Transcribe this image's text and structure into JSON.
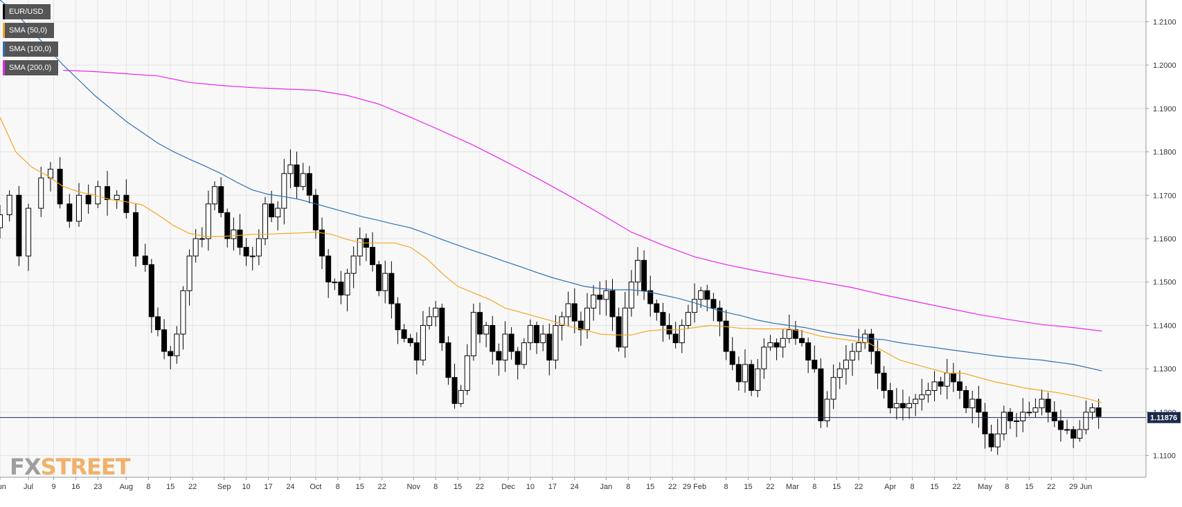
{
  "chart_data": {
    "type": "candlestick",
    "symbol": "EUR/USD",
    "legend": [
      {
        "label": "EUR/USD",
        "color": "#000000"
      },
      {
        "label": "SMA (50,0)",
        "color": "#f5a623"
      },
      {
        "label": "SMA (100,0)",
        "color": "#2f6fb5"
      },
      {
        "label": "SMA (200,0)",
        "color": "#ee22ee"
      }
    ],
    "ylim": [
      1.105,
      1.215
    ],
    "y_ticks": [
      "1.1100",
      "1.1200",
      "1.1300",
      "1.1400",
      "1.1500",
      "1.1600",
      "1.1700",
      "1.1800",
      "1.1900",
      "1.2000",
      "1.2100"
    ],
    "x_range_days": [
      0,
      363
    ],
    "x_ticks": [
      {
        "day": 0,
        "label": "Jun"
      },
      {
        "day": 9,
        "label": "Jul"
      },
      {
        "day": 17,
        "label": "9"
      },
      {
        "day": 24,
        "label": "16"
      },
      {
        "day": 31,
        "label": "23"
      },
      {
        "day": 40,
        "label": "Aug"
      },
      {
        "day": 47,
        "label": "8"
      },
      {
        "day": 54,
        "label": "15"
      },
      {
        "day": 61,
        "label": "22"
      },
      {
        "day": 71,
        "label": "Sep"
      },
      {
        "day": 78,
        "label": "10"
      },
      {
        "day": 85,
        "label": "17"
      },
      {
        "day": 92,
        "label": "24"
      },
      {
        "day": 100,
        "label": "Oct"
      },
      {
        "day": 107,
        "label": "8"
      },
      {
        "day": 114,
        "label": "15"
      },
      {
        "day": 121,
        "label": "22"
      },
      {
        "day": 131,
        "label": "Nov"
      },
      {
        "day": 138,
        "label": "8"
      },
      {
        "day": 145,
        "label": "15"
      },
      {
        "day": 152,
        "label": "22"
      },
      {
        "day": 161,
        "label": "Dec"
      },
      {
        "day": 168,
        "label": "10"
      },
      {
        "day": 175,
        "label": "17"
      },
      {
        "day": 182,
        "label": "24"
      },
      {
        "day": 192,
        "label": "Jan"
      },
      {
        "day": 199,
        "label": "8"
      },
      {
        "day": 206,
        "label": "15"
      },
      {
        "day": 213,
        "label": "22"
      },
      {
        "day": 220,
        "label": "29 Feb"
      },
      {
        "day": 230,
        "label": "8"
      },
      {
        "day": 237,
        "label": "15"
      },
      {
        "day": 244,
        "label": "22"
      },
      {
        "day": 251,
        "label": "Mar"
      },
      {
        "day": 258,
        "label": "8"
      },
      {
        "day": 265,
        "label": "15"
      },
      {
        "day": 272,
        "label": "22"
      },
      {
        "day": 282,
        "label": "Apr"
      },
      {
        "day": 289,
        "label": "8"
      },
      {
        "day": 296,
        "label": "15"
      },
      {
        "day": 303,
        "label": "22"
      },
      {
        "day": 312,
        "label": "May"
      },
      {
        "day": 319,
        "label": "8"
      },
      {
        "day": 326,
        "label": "15"
      },
      {
        "day": 333,
        "label": "22"
      },
      {
        "day": 340,
        "label": "29"
      },
      {
        "day": 344,
        "label": "Jun"
      }
    ],
    "closes": [
      [
        0,
        1.1655
      ],
      [
        3,
        1.17
      ],
      [
        6,
        1.156
      ],
      [
        9,
        1.167
      ],
      [
        13,
        1.174
      ],
      [
        16,
        1.176
      ],
      [
        19,
        1.168
      ],
      [
        22,
        1.164
      ],
      [
        25,
        1.17
      ],
      [
        28,
        1.168
      ],
      [
        31,
        1.172
      ],
      [
        34,
        1.169
      ],
      [
        37,
        1.17
      ],
      [
        40,
        1.166
      ],
      [
        43,
        1.156
      ],
      [
        46,
        1.154
      ],
      [
        48,
        1.142
      ],
      [
        50,
        1.139
      ],
      [
        52,
        1.134
      ],
      [
        54,
        1.133
      ],
      [
        56,
        1.138
      ],
      [
        58,
        1.148
      ],
      [
        60,
        1.156
      ],
      [
        62,
        1.16
      ],
      [
        64,
        1.16
      ],
      [
        66,
        1.168
      ],
      [
        68,
        1.172
      ],
      [
        70,
        1.166
      ],
      [
        72,
        1.16
      ],
      [
        74,
        1.162
      ],
      [
        76,
        1.158
      ],
      [
        78,
        1.156
      ],
      [
        80,
        1.156
      ],
      [
        82,
        1.16
      ],
      [
        84,
        1.168
      ],
      [
        86,
        1.165
      ],
      [
        88,
        1.167
      ],
      [
        90,
        1.175
      ],
      [
        92,
        1.177
      ],
      [
        94,
        1.172
      ],
      [
        96,
        1.175
      ],
      [
        98,
        1.17
      ],
      [
        100,
        1.162
      ],
      [
        102,
        1.156
      ],
      [
        104,
        1.15
      ],
      [
        106,
        1.15
      ],
      [
        108,
        1.147
      ],
      [
        110,
        1.152
      ],
      [
        112,
        1.156
      ],
      [
        114,
        1.16
      ],
      [
        116,
        1.158
      ],
      [
        118,
        1.154
      ],
      [
        120,
        1.148
      ],
      [
        122,
        1.152
      ],
      [
        124,
        1.145
      ],
      [
        126,
        1.139
      ],
      [
        128,
        1.137
      ],
      [
        130,
        1.136
      ],
      [
        132,
        1.132
      ],
      [
        134,
        1.14
      ],
      [
        136,
        1.142
      ],
      [
        138,
        1.144
      ],
      [
        140,
        1.136
      ],
      [
        142,
        1.128
      ],
      [
        144,
        1.122
      ],
      [
        146,
        1.125
      ],
      [
        148,
        1.133
      ],
      [
        150,
        1.143
      ],
      [
        152,
        1.138
      ],
      [
        154,
        1.14
      ],
      [
        156,
        1.134
      ],
      [
        158,
        1.132
      ],
      [
        160,
        1.138
      ],
      [
        162,
        1.134
      ],
      [
        164,
        1.131
      ],
      [
        166,
        1.136
      ],
      [
        168,
        1.14
      ],
      [
        170,
        1.136
      ],
      [
        172,
        1.138
      ],
      [
        174,
        1.132
      ],
      [
        176,
        1.14
      ],
      [
        178,
        1.142
      ],
      [
        180,
        1.145
      ],
      [
        182,
        1.141
      ],
      [
        184,
        1.139
      ],
      [
        186,
        1.144
      ],
      [
        188,
        1.147
      ],
      [
        190,
        1.146
      ],
      [
        192,
        1.148
      ],
      [
        194,
        1.142
      ],
      [
        196,
        1.135
      ],
      [
        198,
        1.144
      ],
      [
        200,
        1.15
      ],
      [
        202,
        1.155
      ],
      [
        204,
        1.148
      ],
      [
        206,
        1.145
      ],
      [
        208,
        1.143
      ],
      [
        210,
        1.14
      ],
      [
        212,
        1.138
      ],
      [
        214,
        1.136
      ],
      [
        216,
        1.14
      ],
      [
        218,
        1.143
      ],
      [
        220,
        1.146
      ],
      [
        222,
        1.148
      ],
      [
        224,
        1.146
      ],
      [
        226,
        1.144
      ],
      [
        228,
        1.141
      ],
      [
        230,
        1.134
      ],
      [
        232,
        1.131
      ],
      [
        234,
        1.127
      ],
      [
        236,
        1.131
      ],
      [
        238,
        1.125
      ],
      [
        240,
        1.13
      ],
      [
        242,
        1.135
      ],
      [
        244,
        1.136
      ],
      [
        246,
        1.135
      ],
      [
        248,
        1.137
      ],
      [
        250,
        1.139
      ],
      [
        252,
        1.137
      ],
      [
        254,
        1.136
      ],
      [
        256,
        1.132
      ],
      [
        258,
        1.13
      ],
      [
        260,
        1.118
      ],
      [
        262,
        1.123
      ],
      [
        264,
        1.128
      ],
      [
        266,
        1.13
      ],
      [
        268,
        1.132
      ],
      [
        270,
        1.134
      ],
      [
        272,
        1.136
      ],
      [
        274,
        1.138
      ],
      [
        276,
        1.134
      ],
      [
        278,
        1.129
      ],
      [
        280,
        1.125
      ],
      [
        282,
        1.121
      ],
      [
        284,
        1.122
      ],
      [
        286,
        1.121
      ],
      [
        288,
        1.122
      ],
      [
        290,
        1.123
      ],
      [
        292,
        1.124
      ],
      [
        294,
        1.125
      ],
      [
        296,
        1.127
      ],
      [
        298,
        1.126
      ],
      [
        300,
        1.129
      ],
      [
        302,
        1.127
      ],
      [
        304,
        1.125
      ],
      [
        306,
        1.121
      ],
      [
        308,
        1.123
      ],
      [
        310,
        1.12
      ],
      [
        312,
        1.115
      ],
      [
        314,
        1.112
      ],
      [
        316,
        1.115
      ],
      [
        318,
        1.12
      ],
      [
        320,
        1.118
      ],
      [
        322,
        1.118
      ],
      [
        324,
        1.12
      ],
      [
        326,
        1.12
      ],
      [
        328,
        1.121
      ],
      [
        330,
        1.123
      ],
      [
        332,
        1.12
      ],
      [
        334,
        1.118
      ],
      [
        336,
        1.116
      ],
      [
        338,
        1.116
      ],
      [
        340,
        1.114
      ],
      [
        342,
        1.116
      ],
      [
        344,
        1.12
      ],
      [
        346,
        1.121
      ],
      [
        348,
        1.119
      ]
    ],
    "sma_50": [
      [
        0,
        1.188
      ],
      [
        5,
        1.18
      ],
      [
        10,
        1.1765
      ],
      [
        15,
        1.1745
      ],
      [
        20,
        1.172
      ],
      [
        25,
        1.1708
      ],
      [
        30,
        1.17
      ],
      [
        35,
        1.169
      ],
      [
        40,
        1.1685
      ],
      [
        45,
        1.1678
      ],
      [
        50,
        1.1655
      ],
      [
        55,
        1.163
      ],
      [
        60,
        1.1612
      ],
      [
        65,
        1.1605
      ],
      [
        70,
        1.1605
      ],
      [
        75,
        1.1607
      ],
      [
        80,
        1.161
      ],
      [
        85,
        1.161
      ],
      [
        90,
        1.1612
      ],
      [
        95,
        1.1613
      ],
      [
        100,
        1.1615
      ],
      [
        105,
        1.161
      ],
      [
        110,
        1.1598
      ],
      [
        115,
        1.159
      ],
      [
        120,
        1.159
      ],
      [
        125,
        1.159
      ],
      [
        130,
        1.158
      ],
      [
        135,
        1.1555
      ],
      [
        140,
        1.152
      ],
      [
        145,
        1.149
      ],
      [
        150,
        1.1475
      ],
      [
        155,
        1.146
      ],
      [
        160,
        1.144
      ],
      [
        165,
        1.143
      ],
      [
        170,
        1.142
      ],
      [
        175,
        1.141
      ],
      [
        180,
        1.1398
      ],
      [
        185,
        1.139
      ],
      [
        190,
        1.138
      ],
      [
        195,
        1.1378
      ],
      [
        200,
        1.1378
      ],
      [
        205,
        1.1387
      ],
      [
        210,
        1.139
      ],
      [
        215,
        1.139
      ],
      [
        220,
        1.1395
      ],
      [
        225,
        1.14
      ],
      [
        230,
        1.1397
      ],
      [
        235,
        1.1393
      ],
      [
        240,
        1.1392
      ],
      [
        245,
        1.1392
      ],
      [
        250,
        1.1392
      ],
      [
        255,
        1.1385
      ],
      [
        260,
        1.1375
      ],
      [
        265,
        1.137
      ],
      [
        270,
        1.1365
      ],
      [
        275,
        1.136
      ],
      [
        280,
        1.134
      ],
      [
        285,
        1.132
      ],
      [
        290,
        1.131
      ],
      [
        295,
        1.13
      ],
      [
        300,
        1.129
      ],
      [
        305,
        1.129
      ],
      [
        310,
        1.128
      ],
      [
        315,
        1.127
      ],
      [
        320,
        1.1263
      ],
      [
        325,
        1.1255
      ],
      [
        330,
        1.125
      ],
      [
        335,
        1.1245
      ],
      [
        340,
        1.1238
      ],
      [
        345,
        1.123
      ],
      [
        349,
        1.1222
      ]
    ],
    "sma_100": [
      [
        0,
        1.215
      ],
      [
        5,
        1.212
      ],
      [
        10,
        1.208
      ],
      [
        15,
        1.204
      ],
      [
        20,
        1.2
      ],
      [
        25,
        1.1965
      ],
      [
        30,
        1.193
      ],
      [
        35,
        1.19
      ],
      [
        40,
        1.187
      ],
      [
        45,
        1.1845
      ],
      [
        50,
        1.182
      ],
      [
        55,
        1.18
      ],
      [
        60,
        1.1783
      ],
      [
        65,
        1.1767
      ],
      [
        70,
        1.175
      ],
      [
        75,
        1.173
      ],
      [
        80,
        1.1712
      ],
      [
        85,
        1.1702
      ],
      [
        90,
        1.1697
      ],
      [
        95,
        1.169
      ],
      [
        100,
        1.168
      ],
      [
        105,
        1.167
      ],
      [
        110,
        1.166
      ],
      [
        115,
        1.165
      ],
      [
        120,
        1.1642
      ],
      [
        125,
        1.1633
      ],
      [
        130,
        1.1625
      ],
      [
        135,
        1.1612
      ],
      [
        140,
        1.1598
      ],
      [
        145,
        1.1585
      ],
      [
        150,
        1.1572
      ],
      [
        155,
        1.156
      ],
      [
        160,
        1.1547
      ],
      [
        165,
        1.1535
      ],
      [
        170,
        1.1522
      ],
      [
        175,
        1.151
      ],
      [
        180,
        1.15
      ],
      [
        185,
        1.149
      ],
      [
        190,
        1.1485
      ],
      [
        195,
        1.1482
      ],
      [
        200,
        1.1482
      ],
      [
        205,
        1.1478
      ],
      [
        210,
        1.147
      ],
      [
        215,
        1.1462
      ],
      [
        220,
        1.1452
      ],
      [
        225,
        1.144
      ],
      [
        230,
        1.143
      ],
      [
        235,
        1.1422
      ],
      [
        240,
        1.1412
      ],
      [
        245,
        1.1405
      ],
      [
        250,
        1.14
      ],
      [
        255,
        1.1395
      ],
      [
        260,
        1.1387
      ],
      [
        265,
        1.138
      ],
      [
        270,
        1.1375
      ],
      [
        275,
        1.137
      ],
      [
        280,
        1.1367
      ],
      [
        285,
        1.136
      ],
      [
        290,
        1.1355
      ],
      [
        295,
        1.135
      ],
      [
        300,
        1.1345
      ],
      [
        305,
        1.134
      ],
      [
        310,
        1.1335
      ],
      [
        315,
        1.133
      ],
      [
        320,
        1.1326
      ],
      [
        325,
        1.1323
      ],
      [
        330,
        1.132
      ],
      [
        335,
        1.1315
      ],
      [
        340,
        1.131
      ],
      [
        345,
        1.1302
      ],
      [
        349,
        1.1295
      ]
    ],
    "sma_200": [
      [
        20,
        1.1988
      ],
      [
        30,
        1.1985
      ],
      [
        40,
        1.198
      ],
      [
        50,
        1.1975
      ],
      [
        60,
        1.196
      ],
      [
        70,
        1.1953
      ],
      [
        80,
        1.1948
      ],
      [
        90,
        1.1945
      ],
      [
        100,
        1.1942
      ],
      [
        110,
        1.193
      ],
      [
        120,
        1.191
      ],
      [
        130,
        1.188
      ],
      [
        140,
        1.1848
      ],
      [
        150,
        1.1815
      ],
      [
        160,
        1.1778
      ],
      [
        170,
        1.174
      ],
      [
        180,
        1.17
      ],
      [
        190,
        1.1658
      ],
      [
        200,
        1.1615
      ],
      [
        210,
        1.1585
      ],
      [
        220,
        1.1558
      ],
      [
        230,
        1.154
      ],
      [
        240,
        1.1525
      ],
      [
        250,
        1.1512
      ],
      [
        260,
        1.15
      ],
      [
        270,
        1.1487
      ],
      [
        280,
        1.147
      ],
      [
        290,
        1.1455
      ],
      [
        300,
        1.144
      ],
      [
        310,
        1.1425
      ],
      [
        320,
        1.1413
      ],
      [
        330,
        1.1402
      ],
      [
        340,
        1.1395
      ],
      [
        349,
        1.1387
      ]
    ],
    "current_price": 1.11876,
    "current_price_label": "1.11876"
  },
  "watermark": {
    "part1": "FX",
    "part2": "STREET"
  }
}
